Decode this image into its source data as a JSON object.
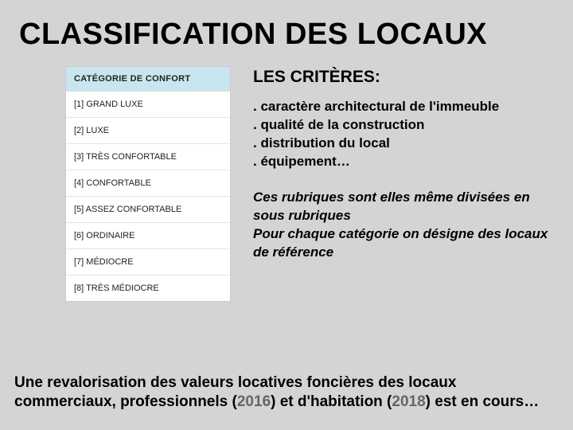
{
  "title": "CLASSIFICATION DES LOCAUX",
  "table": {
    "header": "CATÉGORIE DE CONFORT",
    "header_bg": "#c9e6f0",
    "rows": [
      "[1] GRAND LUXE",
      "[2] LUXE",
      "[3] TRÈS CONFORTABLE",
      "[4] CONFORTABLE",
      "[5] ASSEZ CONFORTABLE",
      "[6] ORDINAIRE",
      "[7] MÉDIOCRE",
      "[8] TRÈS MÉDIOCRE"
    ],
    "border_color": "#ccc",
    "row_border": "#e4e4e4",
    "font_size": 11
  },
  "subtitle": "LES CRITÈRES:",
  "criteria": [
    ". caractère architectural de l'immeuble",
    ". qualité de la construction",
    ". distribution du local",
    ". équipement…"
  ],
  "note_lines": [
    "Ces rubriques sont elles même divisées en sous rubriques",
    "Pour chaque catégorie on désigne des locaux de référence"
  ],
  "footer": {
    "pre1": "Une revalorisation des valeurs locatives foncières des locaux commerciaux, professionnels (",
    "year1": "2016",
    "mid": ") et d'habitation (",
    "year2": "2018",
    "post": ") est en cours…"
  },
  "colors": {
    "page_bg": "#d4d4d4",
    "text": "#000000",
    "year_text": "#666666"
  },
  "typography": {
    "title_size": 38,
    "subtitle_size": 21,
    "body_size": 17,
    "footer_size": 19
  }
}
